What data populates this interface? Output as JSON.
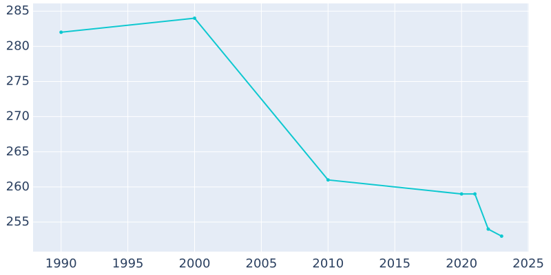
{
  "chart_data": {
    "type": "line",
    "x": [
      1990,
      2000,
      2010,
      2020,
      2021,
      2022,
      2023
    ],
    "series": [
      {
        "color": "#0ec8d0",
        "values": [
          282,
          284,
          261,
          259,
          259,
          254,
          253
        ]
      }
    ],
    "xlim": [
      1987.9,
      2025.05
    ],
    "xticks": [
      1990,
      1995,
      2000,
      2005,
      2010,
      2015,
      2020,
      2025
    ],
    "ylim": [
      250.8,
      286.1
    ],
    "yticks": [
      255,
      260,
      265,
      270,
      275,
      280,
      285
    ],
    "grid": true,
    "background": "#e5ecf6"
  }
}
